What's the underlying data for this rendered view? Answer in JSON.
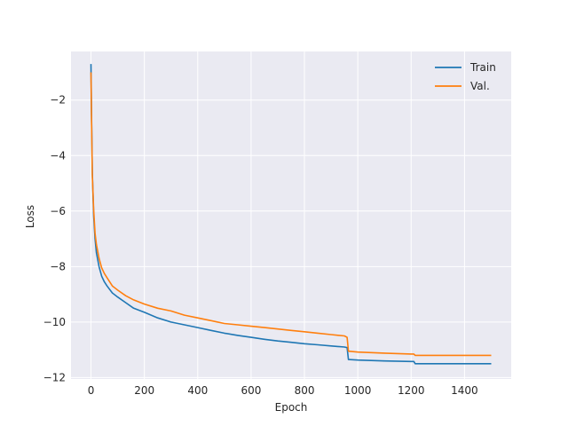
{
  "chart_data": {
    "type": "line",
    "title": "",
    "xlabel": "Epoch",
    "ylabel": "Loss",
    "xlim": [
      -75,
      1575
    ],
    "ylim": [
      -12.05,
      -0.25
    ],
    "xticks": [
      0,
      200,
      400,
      600,
      800,
      1000,
      1200,
      1400
    ],
    "yticks": [
      -12,
      -10,
      -8,
      -6,
      -4,
      -2
    ],
    "xtick_labels": [
      "0",
      "200",
      "400",
      "600",
      "800",
      "1000",
      "1200",
      "1400"
    ],
    "ytick_labels": [
      "−12",
      "−10",
      "−8",
      "−6",
      "−4",
      "−2"
    ],
    "grid": true,
    "legend_position": "top-right",
    "background": "#eaeaf2",
    "series": [
      {
        "name": "Train",
        "color": "#1f77b4",
        "x": [
          0,
          2,
          5,
          10,
          15,
          20,
          30,
          40,
          50,
          60,
          80,
          100,
          130,
          160,
          200,
          250,
          300,
          350,
          400,
          450,
          500,
          550,
          600,
          650,
          700,
          750,
          800,
          850,
          900,
          950,
          960,
          965,
          1000,
          1100,
          1200,
          1210,
          1215,
          1300,
          1400,
          1500
        ],
        "y": [
          -0.7,
          -2.5,
          -4.6,
          -6.2,
          -7.0,
          -7.5,
          -8.0,
          -8.35,
          -8.55,
          -8.7,
          -8.95,
          -9.1,
          -9.3,
          -9.5,
          -9.65,
          -9.85,
          -10.0,
          -10.1,
          -10.2,
          -10.3,
          -10.4,
          -10.48,
          -10.55,
          -10.62,
          -10.68,
          -10.73,
          -10.78,
          -10.82,
          -10.86,
          -10.9,
          -10.92,
          -11.35,
          -11.37,
          -11.4,
          -11.42,
          -11.42,
          -11.5,
          -11.5,
          -11.5,
          -11.5
        ]
      },
      {
        "name": "Val.",
        "color": "#ff7f0e",
        "x": [
          0,
          2,
          5,
          10,
          15,
          20,
          30,
          40,
          50,
          60,
          80,
          100,
          130,
          160,
          200,
          250,
          300,
          350,
          400,
          450,
          500,
          550,
          600,
          650,
          700,
          750,
          800,
          850,
          900,
          950,
          960,
          965,
          1000,
          1100,
          1200,
          1210,
          1215,
          1300,
          1400,
          1500
        ],
        "y": [
          -1.0,
          -2.6,
          -4.7,
          -6.0,
          -6.8,
          -7.2,
          -7.7,
          -8.05,
          -8.25,
          -8.4,
          -8.7,
          -8.85,
          -9.05,
          -9.2,
          -9.35,
          -9.5,
          -9.6,
          -9.75,
          -9.85,
          -9.95,
          -10.05,
          -10.1,
          -10.15,
          -10.2,
          -10.25,
          -10.3,
          -10.35,
          -10.4,
          -10.45,
          -10.5,
          -10.55,
          -11.05,
          -11.08,
          -11.12,
          -11.15,
          -11.15,
          -11.2,
          -11.2,
          -11.2,
          -11.2
        ]
      }
    ]
  }
}
